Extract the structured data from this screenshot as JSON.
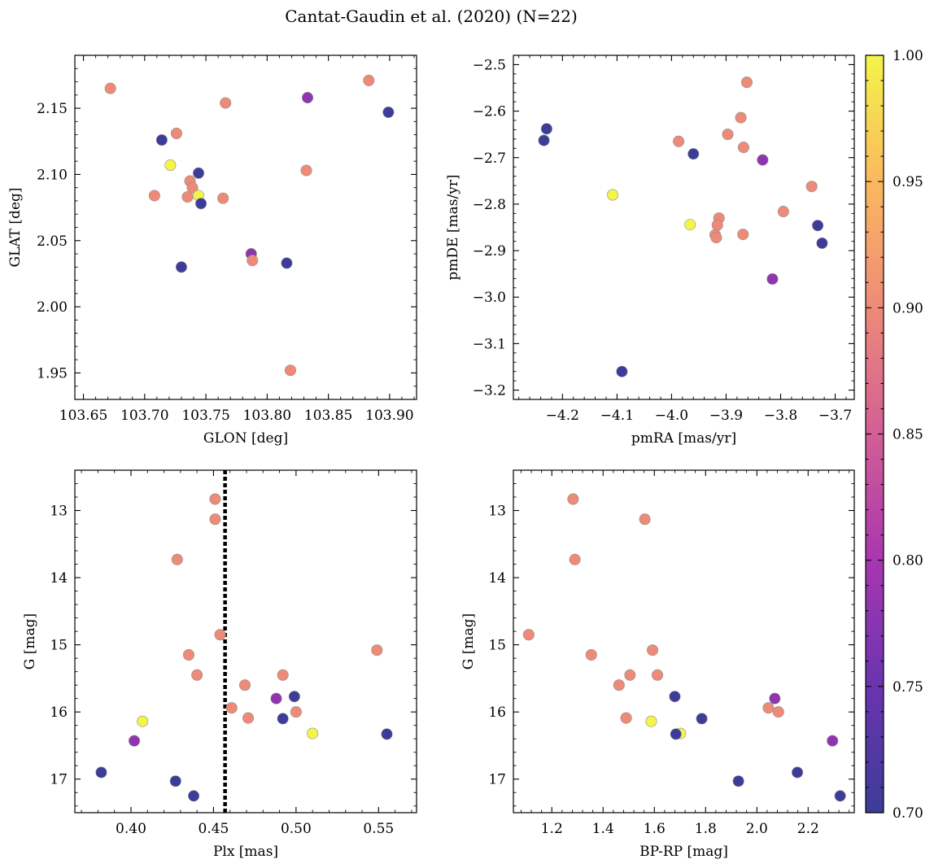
{
  "figure": {
    "title": "Cantat-Gaudin et al. (2020) (N=22)"
  },
  "colorbar": {
    "colormap": "plasma",
    "vmin": 0.7,
    "vmax": 1.0,
    "ticks": [
      0.7,
      0.75,
      0.8,
      0.85,
      0.9,
      0.95,
      1.0
    ],
    "tick_labels": [
      "0.70",
      "0.75",
      "0.80",
      "0.85",
      "0.90",
      "0.95",
      "1.00"
    ]
  },
  "chart_data": [
    {
      "type": "scatter",
      "id": "glon-glat",
      "xlabel": "GLON [deg]",
      "ylabel": "GLAT [deg]",
      "xlim": [
        103.643,
        103.922
      ],
      "ylim": [
        1.93,
        2.19
      ],
      "invert_y": false,
      "xticks": [
        103.65,
        103.7,
        103.75,
        103.8,
        103.85,
        103.9
      ],
      "xtick_labels": [
        "103.65",
        "103.70",
        "103.75",
        "103.80",
        "103.85",
        "103.90"
      ],
      "yticks": [
        1.95,
        2.0,
        2.05,
        2.1,
        2.15
      ],
      "ytick_labels": [
        "1.95",
        "2.00",
        "2.05",
        "2.10",
        "2.15"
      ],
      "points": [
        {
          "x": 103.672,
          "y": 2.165,
          "c": 0.9
        },
        {
          "x": 103.883,
          "y": 2.171,
          "c": 0.9
        },
        {
          "x": 103.833,
          "y": 2.158,
          "c": 0.78
        },
        {
          "x": 103.899,
          "y": 2.147,
          "c": 0.7
        },
        {
          "x": 103.766,
          "y": 2.154,
          "c": 0.9
        },
        {
          "x": 103.726,
          "y": 2.131,
          "c": 0.9
        },
        {
          "x": 103.714,
          "y": 2.126,
          "c": 0.7
        },
        {
          "x": 103.721,
          "y": 2.107,
          "c": 1.0
        },
        {
          "x": 103.744,
          "y": 2.101,
          "c": 0.7
        },
        {
          "x": 103.832,
          "y": 2.103,
          "c": 0.9
        },
        {
          "x": 103.737,
          "y": 2.095,
          "c": 0.9
        },
        {
          "x": 103.739,
          "y": 2.09,
          "c": 0.9
        },
        {
          "x": 103.708,
          "y": 2.084,
          "c": 0.9
        },
        {
          "x": 103.735,
          "y": 2.083,
          "c": 0.9
        },
        {
          "x": 103.744,
          "y": 2.084,
          "c": 1.0
        },
        {
          "x": 103.764,
          "y": 2.082,
          "c": 0.9
        },
        {
          "x": 103.746,
          "y": 2.078,
          "c": 0.7
        },
        {
          "x": 103.787,
          "y": 2.04,
          "c": 0.78
        },
        {
          "x": 103.788,
          "y": 2.035,
          "c": 0.9
        },
        {
          "x": 103.816,
          "y": 2.033,
          "c": 0.7
        },
        {
          "x": 103.73,
          "y": 2.03,
          "c": 0.7
        },
        {
          "x": 103.819,
          "y": 1.952,
          "c": 0.9
        }
      ]
    },
    {
      "type": "scatter",
      "id": "pmra-pmde",
      "xlabel": "pmRA [mas/yr]",
      "ylabel": "pmDE [mas/yr]",
      "xlim": [
        -4.29,
        -3.665
      ],
      "ylim": [
        -3.22,
        -2.48
      ],
      "invert_y": false,
      "xticks": [
        -4.2,
        -4.1,
        -4.0,
        -3.9,
        -3.8,
        -3.7
      ],
      "xtick_labels": [
        "−4.2",
        "−4.1",
        "−4.0",
        "−3.9",
        "−3.8",
        "−3.7"
      ],
      "yticks": [
        -3.2,
        -3.1,
        -3.0,
        -2.9,
        -2.8,
        -2.7,
        -2.6,
        -2.5
      ],
      "ytick_labels": [
        "−3.2",
        "−3.1",
        "−3.0",
        "−2.9",
        "−2.8",
        "−2.7",
        "−2.6",
        "−2.5"
      ],
      "points": [
        {
          "x": -3.862,
          "y": -2.538,
          "c": 0.9
        },
        {
          "x": -3.873,
          "y": -2.614,
          "c": 0.9
        },
        {
          "x": -4.229,
          "y": -2.638,
          "c": 0.7
        },
        {
          "x": -3.897,
          "y": -2.65,
          "c": 0.9
        },
        {
          "x": -4.234,
          "y": -2.663,
          "c": 0.7
        },
        {
          "x": -3.987,
          "y": -2.665,
          "c": 0.9
        },
        {
          "x": -3.868,
          "y": -2.678,
          "c": 0.9
        },
        {
          "x": -3.96,
          "y": -2.692,
          "c": 0.7
        },
        {
          "x": -3.833,
          "y": -2.705,
          "c": 0.78
        },
        {
          "x": -3.743,
          "y": -2.762,
          "c": 0.9
        },
        {
          "x": -4.108,
          "y": -2.78,
          "c": 1.0
        },
        {
          "x": -3.795,
          "y": -2.816,
          "c": 0.9
        },
        {
          "x": -3.913,
          "y": -2.83,
          "c": 0.9
        },
        {
          "x": -3.966,
          "y": -2.844,
          "c": 1.0
        },
        {
          "x": -3.916,
          "y": -2.845,
          "c": 0.9
        },
        {
          "x": -3.732,
          "y": -2.846,
          "c": 0.7
        },
        {
          "x": -3.92,
          "y": -2.866,
          "c": 0.9
        },
        {
          "x": -3.869,
          "y": -2.865,
          "c": 0.9
        },
        {
          "x": -3.918,
          "y": -2.872,
          "c": 0.9
        },
        {
          "x": -3.724,
          "y": -2.884,
          "c": 0.7
        },
        {
          "x": -3.815,
          "y": -2.961,
          "c": 0.78
        },
        {
          "x": -4.091,
          "y": -3.16,
          "c": 0.7
        }
      ]
    },
    {
      "type": "scatter",
      "id": "plx-g",
      "xlabel": "Plx [mas]",
      "ylabel": "G [mag]",
      "xlim": [
        0.366,
        0.573
      ],
      "ylim": [
        17.5,
        12.4
      ],
      "invert_y": true,
      "vline": {
        "x": 0.457,
        "style": "dotted"
      },
      "xticks": [
        0.4,
        0.45,
        0.5,
        0.55
      ],
      "xtick_labels": [
        "0.40",
        "0.45",
        "0.50",
        "0.55"
      ],
      "yticks": [
        13,
        14,
        15,
        16,
        17
      ],
      "ytick_labels": [
        "13",
        "14",
        "15",
        "16",
        "17"
      ],
      "points": [
        {
          "x": 0.451,
          "y": 12.83,
          "c": 0.9
        },
        {
          "x": 0.451,
          "y": 13.13,
          "c": 0.9
        },
        {
          "x": 0.428,
          "y": 13.73,
          "c": 0.9
        },
        {
          "x": 0.454,
          "y": 14.85,
          "c": 0.9
        },
        {
          "x": 0.549,
          "y": 15.08,
          "c": 0.9
        },
        {
          "x": 0.435,
          "y": 15.15,
          "c": 0.9
        },
        {
          "x": 0.44,
          "y": 15.45,
          "c": 0.9
        },
        {
          "x": 0.492,
          "y": 15.45,
          "c": 0.9
        },
        {
          "x": 0.469,
          "y": 15.6,
          "c": 0.9
        },
        {
          "x": 0.499,
          "y": 15.77,
          "c": 0.7
        },
        {
          "x": 0.488,
          "y": 15.8,
          "c": 0.78
        },
        {
          "x": 0.461,
          "y": 15.94,
          "c": 0.9
        },
        {
          "x": 0.5,
          "y": 16.0,
          "c": 0.9
        },
        {
          "x": 0.471,
          "y": 16.09,
          "c": 0.9
        },
        {
          "x": 0.492,
          "y": 16.1,
          "c": 0.7
        },
        {
          "x": 0.407,
          "y": 16.14,
          "c": 1.0
        },
        {
          "x": 0.51,
          "y": 16.32,
          "c": 1.0
        },
        {
          "x": 0.555,
          "y": 16.33,
          "c": 0.7
        },
        {
          "x": 0.402,
          "y": 16.43,
          "c": 0.78
        },
        {
          "x": 0.382,
          "y": 16.9,
          "c": 0.7
        },
        {
          "x": 0.427,
          "y": 17.03,
          "c": 0.7
        },
        {
          "x": 0.438,
          "y": 17.25,
          "c": 0.7
        }
      ]
    },
    {
      "type": "scatter",
      "id": "bprp-g",
      "xlabel": "BP-RP [mag]",
      "ylabel": "G [mag]",
      "xlim": [
        1.05,
        2.38
      ],
      "ylim": [
        17.5,
        12.4
      ],
      "invert_y": true,
      "xticks": [
        1.2,
        1.4,
        1.6,
        1.8,
        2.0,
        2.2
      ],
      "xtick_labels": [
        "1.2",
        "1.4",
        "1.6",
        "1.8",
        "2.0",
        "2.2"
      ],
      "yticks": [
        13,
        14,
        15,
        16,
        17
      ],
      "ytick_labels": [
        "13",
        "14",
        "15",
        "16",
        "17"
      ],
      "points": [
        {
          "x": 1.283,
          "y": 12.83,
          "c": 0.9
        },
        {
          "x": 1.563,
          "y": 13.13,
          "c": 0.9
        },
        {
          "x": 1.29,
          "y": 13.73,
          "c": 0.9
        },
        {
          "x": 1.11,
          "y": 14.85,
          "c": 0.9
        },
        {
          "x": 1.593,
          "y": 15.08,
          "c": 0.9
        },
        {
          "x": 1.354,
          "y": 15.15,
          "c": 0.9
        },
        {
          "x": 1.505,
          "y": 15.45,
          "c": 0.9
        },
        {
          "x": 1.612,
          "y": 15.45,
          "c": 0.9
        },
        {
          "x": 1.462,
          "y": 15.6,
          "c": 0.9
        },
        {
          "x": 1.68,
          "y": 15.77,
          "c": 0.7
        },
        {
          "x": 2.07,
          "y": 15.8,
          "c": 0.78
        },
        {
          "x": 2.045,
          "y": 15.94,
          "c": 0.9
        },
        {
          "x": 2.084,
          "y": 16.0,
          "c": 0.9
        },
        {
          "x": 1.49,
          "y": 16.09,
          "c": 0.9
        },
        {
          "x": 1.785,
          "y": 16.1,
          "c": 0.7
        },
        {
          "x": 1.588,
          "y": 16.14,
          "c": 1.0
        },
        {
          "x": 1.702,
          "y": 16.32,
          "c": 1.0
        },
        {
          "x": 1.684,
          "y": 16.33,
          "c": 0.7
        },
        {
          "x": 2.295,
          "y": 16.43,
          "c": 0.78
        },
        {
          "x": 2.158,
          "y": 16.9,
          "c": 0.7
        },
        {
          "x": 1.928,
          "y": 17.03,
          "c": 0.7
        },
        {
          "x": 2.325,
          "y": 17.25,
          "c": 0.7
        }
      ]
    }
  ]
}
